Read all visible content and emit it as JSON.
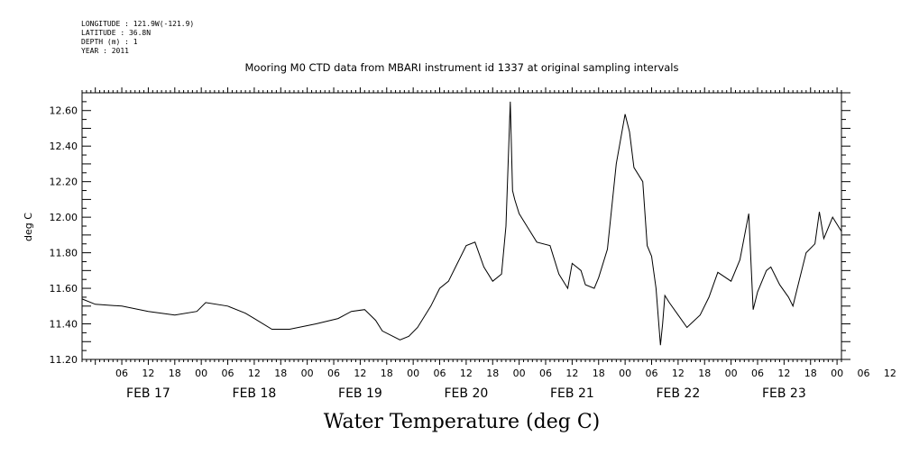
{
  "meta": {
    "longitude": "LONGITUDE : 121.9W(-121.9)",
    "latitude": "LATITUDE : 36.8N",
    "depth": "DEPTH (m) : 1",
    "year": "YEAR : 2011"
  },
  "chart_data": {
    "type": "line",
    "title": "Mooring M0 CTD data from MBARI instrument id 1337 at original sampling intervals",
    "xlabel": "Water Temperature (deg C)",
    "ylabel": "deg C",
    "ylim": [
      11.2,
      12.7
    ],
    "yticks": [
      "11.20",
      "11.40",
      "11.60",
      "11.80",
      "12.00",
      "12.20",
      "12.40",
      "12.60"
    ],
    "xlim": [
      "2011-02-16T21:00",
      "2011-02-24T01:00"
    ],
    "hour_tick_labels": [
      "06",
      "12",
      "18",
      "00",
      "06",
      "12",
      "18",
      "00",
      "06",
      "12",
      "18",
      "00",
      "06",
      "12",
      "18",
      "00",
      "06",
      "12",
      "18",
      "00",
      "06",
      "12",
      "18",
      "00",
      "06",
      "12",
      "18",
      "00",
      "06",
      "12",
      "18",
      "00"
    ],
    "day_labels": [
      "FEB 17",
      "FEB 18",
      "FEB 19",
      "FEB 20",
      "FEB 21",
      "FEB 22",
      "FEB 23"
    ],
    "grid": false,
    "series": [
      {
        "color": "#000000",
        "x": [
          "2011-02-16T21:00",
          "2011-02-17T00:00",
          "2011-02-17T06:00",
          "2011-02-17T12:00",
          "2011-02-17T18:00",
          "2011-02-17T23:00",
          "2011-02-18T01:00",
          "2011-02-18T06:00",
          "2011-02-18T10:00",
          "2011-02-18T12:00",
          "2011-02-18T16:00",
          "2011-02-18T20:00",
          "2011-02-19T02:00",
          "2011-02-19T07:00",
          "2011-02-19T10:00",
          "2011-02-19T13:00",
          "2011-02-19T15:30",
          "2011-02-19T17:00",
          "2011-02-19T21:00",
          "2011-02-19T23:00",
          "2011-02-20T01:00",
          "2011-02-20T04:00",
          "2011-02-20T06:00",
          "2011-02-20T08:00",
          "2011-02-20T10:00",
          "2011-02-20T12:00",
          "2011-02-20T14:00",
          "2011-02-20T16:00",
          "2011-02-20T18:00",
          "2011-02-20T20:00",
          "2011-02-20T21:00",
          "2011-02-20T22:00",
          "2011-02-20T22:30",
          "2011-02-20T23:00",
          "2011-02-21T00:00",
          "2011-02-21T02:00",
          "2011-02-21T04:00",
          "2011-02-21T07:00",
          "2011-02-21T09:00",
          "2011-02-21T11:00",
          "2011-02-21T12:00",
          "2011-02-21T14:00",
          "2011-02-21T15:00",
          "2011-02-21T17:00",
          "2011-02-21T18:00",
          "2011-02-21T20:00",
          "2011-02-21T22:00",
          "2011-02-21T23:00",
          "2011-02-22T00:00",
          "2011-02-22T01:00",
          "2011-02-22T02:00",
          "2011-02-22T04:00",
          "2011-02-22T05:00",
          "2011-02-22T06:00",
          "2011-02-22T07:00",
          "2011-02-22T08:00",
          "2011-02-22T08:30",
          "2011-02-22T09:00",
          "2011-02-22T10:00",
          "2011-02-22T12:00",
          "2011-02-22T14:00",
          "2011-02-22T17:00",
          "2011-02-22T19:00",
          "2011-02-22T21:00",
          "2011-02-23T00:00",
          "2011-02-23T02:00",
          "2011-02-23T04:00",
          "2011-02-23T05:00",
          "2011-02-23T06:00",
          "2011-02-23T08:00",
          "2011-02-23T09:00",
          "2011-02-23T11:00",
          "2011-02-23T13:00",
          "2011-02-23T14:00",
          "2011-02-23T15:00",
          "2011-02-23T17:00",
          "2011-02-23T19:00",
          "2011-02-23T20:00",
          "2011-02-23T21:00",
          "2011-02-23T22:00",
          "2011-02-23T23:00",
          "2011-02-24T00:00",
          "2011-02-24T01:00"
        ],
        "y": [
          11.54,
          11.51,
          11.5,
          11.47,
          11.45,
          11.47,
          11.52,
          11.5,
          11.46,
          11.43,
          11.37,
          11.37,
          11.4,
          11.43,
          11.47,
          11.48,
          11.42,
          11.36,
          11.31,
          11.33,
          11.38,
          11.5,
          11.6,
          11.64,
          11.74,
          11.84,
          11.86,
          11.72,
          11.64,
          11.68,
          11.95,
          12.65,
          12.15,
          12.1,
          12.02,
          11.94,
          11.86,
          11.84,
          11.68,
          11.6,
          11.74,
          11.7,
          11.62,
          11.6,
          11.66,
          11.82,
          12.3,
          12.44,
          12.58,
          12.48,
          12.28,
          12.2,
          11.84,
          11.78,
          11.6,
          11.28,
          11.4,
          11.56,
          11.52,
          11.45,
          11.38,
          11.45,
          11.55,
          11.69,
          11.64,
          11.76,
          12.02,
          11.48,
          11.58,
          11.7,
          11.72,
          11.62,
          11.55,
          11.5,
          11.6,
          11.8,
          11.85,
          12.03,
          11.88,
          11.94,
          12.0,
          11.96,
          11.92
        ]
      }
    ]
  }
}
